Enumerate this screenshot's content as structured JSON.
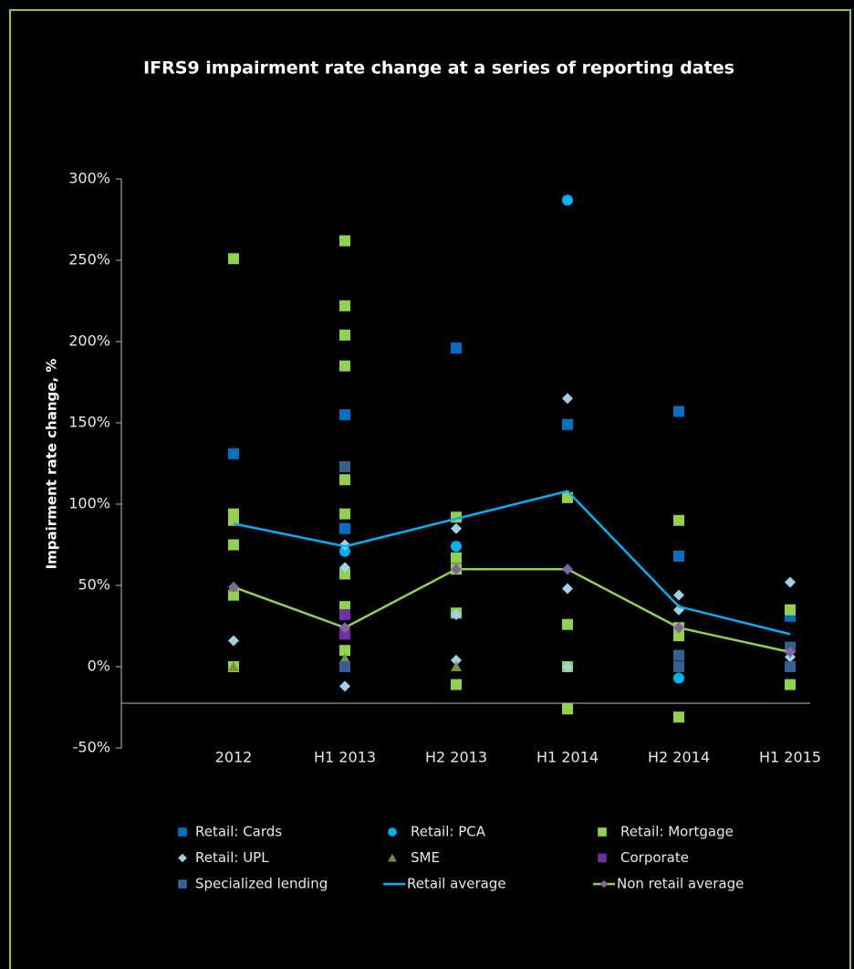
{
  "chart_data": {
    "type": "scatter",
    "title": "IFRS9 impairment rate change at a series of reporting dates",
    "y_label": "Impairment rate change, %",
    "categories": [
      "2012",
      "H1 2013",
      "H2 2013",
      "H1 2014",
      "H2 2014",
      "H1 2015"
    ],
    "ylim": [
      -50,
      300
    ],
    "yticks": [
      {
        "value": -50,
        "label": "-50%"
      },
      {
        "value": 0,
        "label": "0%"
      },
      {
        "value": 50,
        "label": "50%"
      },
      {
        "value": 100,
        "label": "100%"
      },
      {
        "value": 150,
        "label": "150%"
      },
      {
        "value": 200,
        "label": "200%"
      },
      {
        "value": 250,
        "label": "250%"
      },
      {
        "value": 300,
        "label": "300%"
      }
    ],
    "series": [
      {
        "name": "Retail: Cards",
        "marker": "square",
        "color": "#0070c0",
        "x": [
          "2012",
          "H1 2013",
          "H1 2013",
          "H2 2013",
          "H1 2014",
          "H2 2014",
          "H2 2014",
          "H1 2015"
        ],
        "values": [
          131,
          155,
          85,
          196,
          149,
          157,
          68,
          31
        ]
      },
      {
        "name": "Retail: PCA",
        "marker": "circle",
        "color": "#00b0f0",
        "x": [
          "H1 2013",
          "H2 2013",
          "H1 2014",
          "H2 2014"
        ],
        "values": [
          71,
          74,
          287,
          -7
        ]
      },
      {
        "name": "Retail: Mortgage",
        "marker": "square",
        "color": "#92d050",
        "x": [
          "2012",
          "2012",
          "2012",
          "2012",
          "2012",
          "2012",
          "H1 2013",
          "H1 2013",
          "H1 2013",
          "H1 2013",
          "H1 2013",
          "H1 2013",
          "H1 2013",
          "H1 2013",
          "H1 2013",
          "H2 2013",
          "H2 2013",
          "H2 2013",
          "H2 2013",
          "H2 2013",
          "H1 2014",
          "H1 2014",
          "H1 2014",
          "H1 2014",
          "H2 2014",
          "H2 2014",
          "H2 2014",
          "H2 2014",
          "H1 2015",
          "H1 2015"
        ],
        "values": [
          251,
          94,
          90,
          75,
          44,
          0,
          262,
          222,
          204,
          185,
          115,
          94,
          57,
          37,
          10,
          92,
          67,
          60,
          33,
          -11,
          104,
          26,
          0,
          -26,
          90,
          24,
          19,
          -31,
          35,
          -11
        ]
      },
      {
        "name": "Retail: UPL",
        "marker": "diamond",
        "color": "#9dd3e8",
        "x": [
          "2012",
          "H1 2013",
          "H1 2013",
          "H1 2013",
          "H1 2013",
          "H2 2013",
          "H2 2013",
          "H2 2013",
          "H1 2014",
          "H1 2014",
          "H1 2014",
          "H2 2014",
          "H2 2014",
          "H1 2015",
          "H1 2015"
        ],
        "values": [
          16,
          75,
          61,
          21,
          -12,
          85,
          32,
          4,
          165,
          48,
          0,
          44,
          35,
          52,
          6
        ]
      },
      {
        "name": "SME",
        "marker": "triangle",
        "color": "#77933c",
        "x": [
          "2012",
          "2012",
          "H1 2013",
          "H2 2013"
        ],
        "values": [
          49,
          0,
          5,
          0
        ]
      },
      {
        "name": "Corporate",
        "marker": "square",
        "color": "#7030a0",
        "x": [
          "H1 2013",
          "H1 2013"
        ],
        "values": [
          32,
          20
        ]
      },
      {
        "name": "Specialized lending",
        "marker": "square",
        "color": "#366092",
        "x": [
          "H1 2013",
          "H1 2013",
          "H2 2014",
          "H2 2014",
          "H1 2015",
          "H1 2015"
        ],
        "values": [
          123,
          0,
          7,
          0,
          12,
          0
        ]
      },
      {
        "name": "Retail average",
        "marker": "line",
        "color": "#00b0f0",
        "x": [
          "2012",
          "H1 2013",
          "H2 2013",
          "H1 2014",
          "H2 2014",
          "H1 2015"
        ],
        "values": [
          88,
          74,
          91,
          108,
          37,
          20
        ]
      },
      {
        "name": "Non retail average",
        "marker": "line-diamond",
        "color": "#92d050",
        "point_color": "#8064a2",
        "x": [
          "2012",
          "H1 2013",
          "H2 2013",
          "H1 2014",
          "H2 2014",
          "H1 2015"
        ],
        "values": [
          49,
          24,
          60,
          60,
          24,
          9
        ]
      }
    ]
  }
}
